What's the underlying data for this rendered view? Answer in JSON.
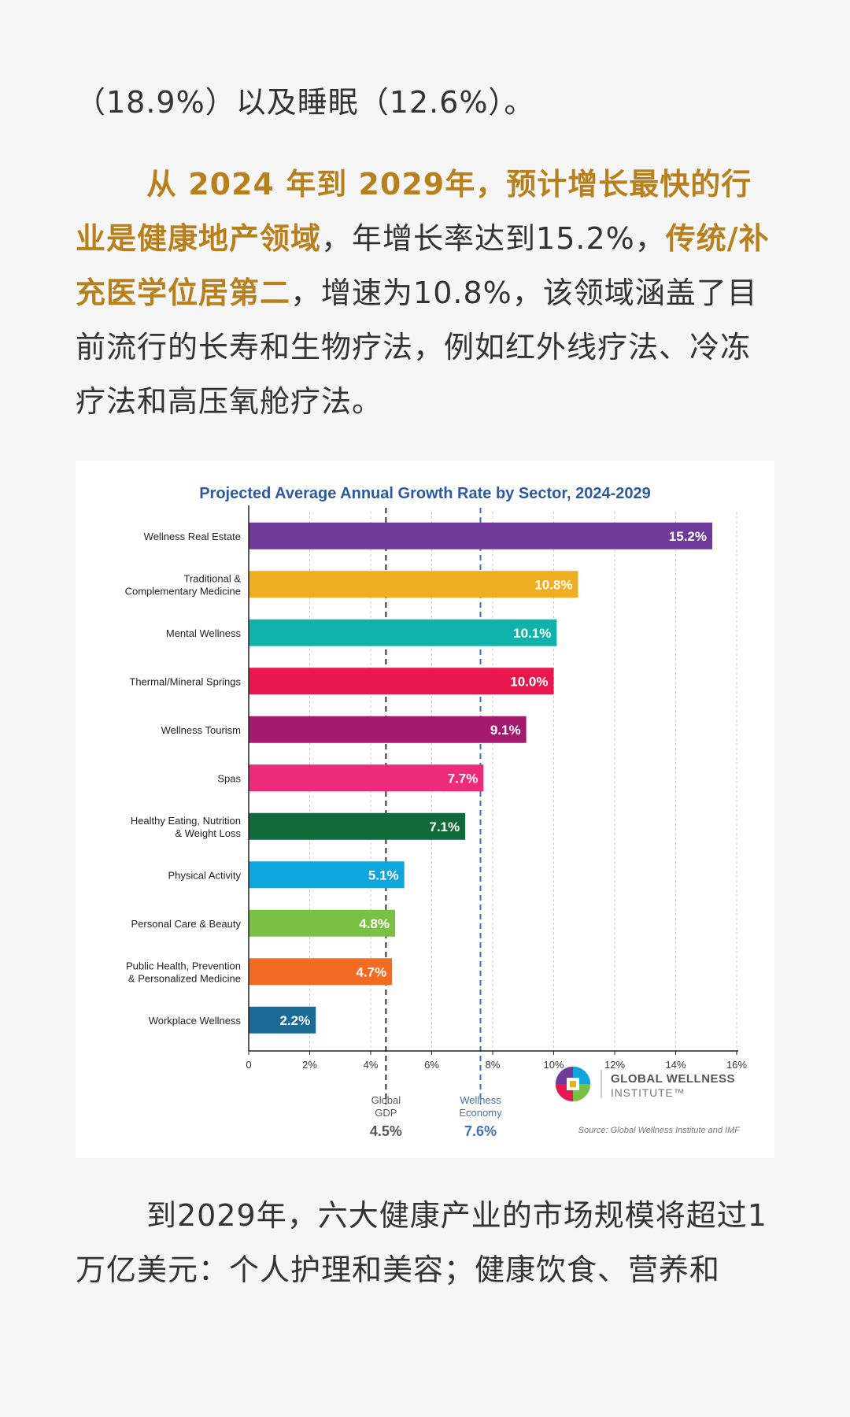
{
  "article": {
    "p1": "（18.9%）以及睡眠（12.6%）。",
    "p2": {
      "hl1": "从 2024 年到 2029年，预计增长最快的行业是健康地产领域",
      "t1": "，年增长率达到15.2%，",
      "hl2": "传统/补充医学位居第二",
      "t2": "，增速为10.8%，该领域涵盖了目前流行的长寿和生物疗法，例如红外线疗法、冷冻疗法和高压氧舱疗法。"
    },
    "p3": "到2029年，六大健康产业的市场规模将超过1万亿美元：个人护理和美容；健康饮食、营养和"
  },
  "chart_data": {
    "type": "bar",
    "orientation": "horizontal",
    "title": "Projected Average Annual Growth Rate by Sector, 2024-2029",
    "categories": [
      "Wellness Real Estate",
      "Traditional &\nComplementary Medicine",
      "Mental Wellness",
      "Thermal/Mineral Springs",
      "Wellness Tourism",
      "Spas",
      "Healthy Eating, Nutrition\n& Weight Loss",
      "Physical Activity",
      "Personal Care & Beauty",
      "Public Health, Prevention\n& Personalized Medicine",
      "Workplace Wellness"
    ],
    "values": [
      15.2,
      10.8,
      10.1,
      10.0,
      9.1,
      7.7,
      7.1,
      5.1,
      4.8,
      4.7,
      2.2
    ],
    "value_labels": [
      "15.2%",
      "10.8%",
      "10.1%",
      "10.0%",
      "9.1%",
      "7.7%",
      "7.1%",
      "5.1%",
      "4.8%",
      "4.7%",
      "2.2%"
    ],
    "colors": [
      "#6f3a99",
      "#eeae22",
      "#10b3ab",
      "#e8174e",
      "#a41a6f",
      "#ee2a7b",
      "#116a3a",
      "#0ea5dc",
      "#7ac143",
      "#f26b22",
      "#1b6a95"
    ],
    "xlim": [
      0,
      16
    ],
    "xticks": [
      "0",
      "2%",
      "4%",
      "6%",
      "8%",
      "10%",
      "12%",
      "14%",
      "16%"
    ],
    "grid": true,
    "reference_lines": [
      {
        "label_line1": "Global",
        "label_line2": "GDP",
        "value_label": "4.5%",
        "value": 4.5,
        "color": "#333333",
        "text_color": "#555555"
      },
      {
        "label_line1": "Wellness",
        "label_line2": "Economy",
        "value_label": "7.6%",
        "value": 7.6,
        "color": "#3f72b0",
        "text_color": "#3f72b0"
      }
    ],
    "logo_text_line1": "GLOBAL WELLNESS",
    "logo_text_line2": "INSTITUTE™",
    "source": "Source: Global Wellness Institute and IMF",
    "title_color": "#2c5aa0"
  }
}
